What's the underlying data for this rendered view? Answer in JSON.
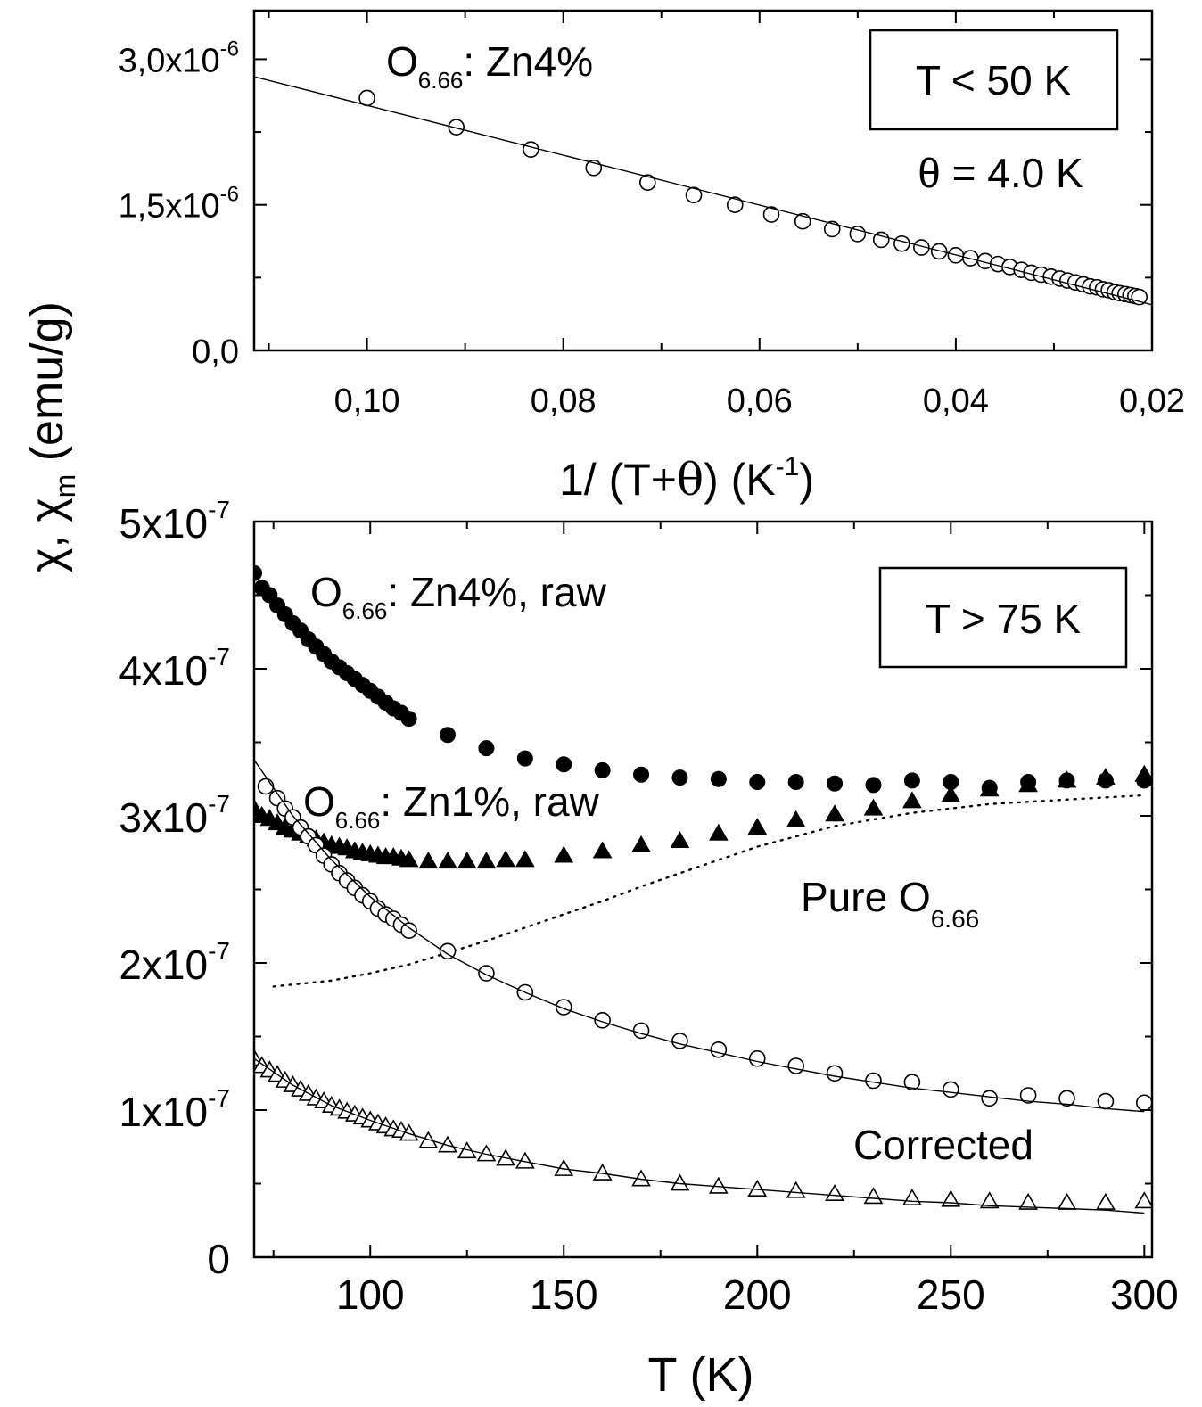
{
  "figure": {
    "shared_ylabel": {
      "main": "χ, χ",
      "sub": "m",
      "units": "(emu/g)"
    }
  },
  "chart_data": [
    {
      "type": "scatter",
      "x_reversed": true,
      "xlim": [
        0.1115,
        0.02
      ],
      "ylim": [
        0.0,
        3.5e-06
      ],
      "xlabel": {
        "pre": "1/ (T+",
        "theta": "θ",
        "post": ") (K",
        "sup": "-1",
        "close": ")"
      },
      "x_ticks": [
        {
          "value": 0.1,
          "label": "0,10"
        },
        {
          "value": 0.08,
          "label": "0,08"
        },
        {
          "value": 0.06,
          "label": "0,06"
        },
        {
          "value": 0.04,
          "label": "0,04"
        },
        {
          "value": 0.02,
          "label": "0,02"
        }
      ],
      "y_ticks": [
        {
          "value": 0.0,
          "mant": "0,0",
          "exp": ""
        },
        {
          "value": 1.5e-06,
          "mant": "1,5x10",
          "exp": "-6"
        },
        {
          "value": 3e-06,
          "mant": "3,0x10",
          "exp": "-6"
        }
      ],
      "annotations": {
        "series_label": {
          "pre": "O",
          "sub": "6.66",
          "post": ": Zn4%"
        },
        "box_label": "T < 50 K",
        "theta_label": "θ = 4.0 K"
      },
      "series": [
        {
          "name": "O6.66: Zn4%",
          "marker": "open-circle",
          "x": [
            0.1,
            0.0909,
            0.0833,
            0.0769,
            0.0714,
            0.0667,
            0.0625,
            0.0588,
            0.0556,
            0.0526,
            0.05,
            0.0476,
            0.0455,
            0.0435,
            0.0417,
            0.04,
            0.0385,
            0.037,
            0.0357,
            0.0345,
            0.0333,
            0.0323,
            0.0313,
            0.0303,
            0.0294,
            0.0286,
            0.0278,
            0.027,
            0.0263,
            0.0256,
            0.025,
            0.0244,
            0.0238,
            0.0233,
            0.0227,
            0.0222,
            0.0217,
            0.0213
          ],
          "y": [
            2.6e-06,
            2.3e-06,
            2.07e-06,
            1.88e-06,
            1.73e-06,
            1.6e-06,
            1.5e-06,
            1.4e-06,
            1.33e-06,
            1.25e-06,
            1.2e-06,
            1.14e-06,
            1.1e-06,
            1.06e-06,
            1.02e-06,
            9.8e-07,
            9.5e-07,
            9.2e-07,
            8.9e-07,
            8.6e-07,
            8.3e-07,
            8e-07,
            7.8e-07,
            7.6e-07,
            7.4e-07,
            7.2e-07,
            7e-07,
            6.8e-07,
            6.6e-07,
            6.5e-07,
            6.3e-07,
            6.2e-07,
            6e-07,
            5.9e-07,
            5.8e-07,
            5.7e-07,
            5.6e-07,
            5.5e-07
          ]
        },
        {
          "name": "fit",
          "style": "solid-line",
          "x": [
            0.1115,
            0.02
          ],
          "y": [
            2.82e-06,
            4.7e-07
          ]
        }
      ]
    },
    {
      "type": "scatter",
      "xlim": [
        70,
        302
      ],
      "ylim": [
        0,
        5e-07
      ],
      "xlabel": "T (K)",
      "x_ticks": [
        {
          "value": 100,
          "label": "100"
        },
        {
          "value": 150,
          "label": "150"
        },
        {
          "value": 200,
          "label": "200"
        },
        {
          "value": 250,
          "label": "250"
        },
        {
          "value": 300,
          "label": "300"
        }
      ],
      "y_ticks": [
        {
          "value": 0,
          "mant": "0",
          "exp": ""
        },
        {
          "value": 1e-07,
          "mant": "1x10",
          "exp": "-7"
        },
        {
          "value": 2e-07,
          "mant": "2x10",
          "exp": "-7"
        },
        {
          "value": 3e-07,
          "mant": "3x10",
          "exp": "-7"
        },
        {
          "value": 4e-07,
          "mant": "4x10",
          "exp": "-7"
        },
        {
          "value": 5e-07,
          "mant": "5x10",
          "exp": "-7"
        }
      ],
      "annotations": {
        "zn4_raw_label": {
          "pre": "O",
          "sub": "6.66",
          "post": ": Zn4%, raw"
        },
        "zn1_raw_label": {
          "pre": "O",
          "sub": "6.66",
          "post": ": Zn1%, raw"
        },
        "pure_label": {
          "pre": "Pure O",
          "sub": "6.66"
        },
        "corrected_label": "Corrected",
        "box_label": "T > 75 K"
      },
      "series": [
        {
          "name": "O6.66: Zn4%, raw",
          "marker": "filled-circle",
          "x": [
            70,
            72,
            74,
            76,
            78,
            80,
            82,
            84,
            86,
            88,
            90,
            92,
            94,
            96,
            98,
            100,
            102,
            104,
            106,
            108,
            110,
            120,
            130,
            140,
            150,
            160,
            170,
            180,
            190,
            200,
            210,
            220,
            230,
            240,
            250,
            260,
            270,
            280,
            290,
            300
          ],
          "y": [
            4.65e-07,
            4.55e-07,
            4.5e-07,
            4.43e-07,
            4.37e-07,
            4.31e-07,
            4.26e-07,
            4.2e-07,
            4.15e-07,
            4.1e-07,
            4.05e-07,
            4.01e-07,
            3.97e-07,
            3.93e-07,
            3.89e-07,
            3.85e-07,
            3.81e-07,
            3.77e-07,
            3.73e-07,
            3.7e-07,
            3.66e-07,
            3.55e-07,
            3.46e-07,
            3.39e-07,
            3.35e-07,
            3.31e-07,
            3.28e-07,
            3.26e-07,
            3.25e-07,
            3.23e-07,
            3.23e-07,
            3.22e-07,
            3.21e-07,
            3.24e-07,
            3.23e-07,
            3.19e-07,
            3.23e-07,
            3.24e-07,
            3.24e-07,
            3.24e-07
          ]
        },
        {
          "name": "O6.66: Zn1%, raw",
          "marker": "filled-triangle",
          "x": [
            70,
            72,
            74,
            76,
            78,
            80,
            82,
            84,
            86,
            88,
            90,
            92,
            94,
            96,
            98,
            100,
            102,
            104,
            106,
            108,
            110,
            115,
            120,
            125,
            130,
            135,
            140,
            150,
            160,
            170,
            180,
            190,
            200,
            210,
            220,
            230,
            240,
            250,
            260,
            270,
            280,
            290,
            300
          ],
          "y": [
            3.05e-07,
            3e-07,
            2.98e-07,
            2.95e-07,
            2.92e-07,
            2.9e-07,
            2.88e-07,
            2.86e-07,
            2.84e-07,
            2.82e-07,
            2.8e-07,
            2.79e-07,
            2.78e-07,
            2.76e-07,
            2.75e-07,
            2.74e-07,
            2.73e-07,
            2.72e-07,
            2.72e-07,
            2.71e-07,
            2.7e-07,
            2.69e-07,
            2.69e-07,
            2.69e-07,
            2.69e-07,
            2.7e-07,
            2.7e-07,
            2.73e-07,
            2.76e-07,
            2.8e-07,
            2.83e-07,
            2.88e-07,
            2.92e-07,
            2.97e-07,
            3.01e-07,
            3.05e-07,
            3.1e-07,
            3.14e-07,
            3.18e-07,
            3.21e-07,
            3.24e-07,
            3.26e-07,
            3.28e-07
          ]
        },
        {
          "name": "Pure O6.66",
          "style": "dotted-line",
          "x": [
            75,
            90,
            100,
            110,
            120,
            130,
            140,
            150,
            160,
            170,
            180,
            190,
            200,
            220,
            240,
            260,
            280,
            300
          ],
          "y": [
            1.84e-07,
            1.88e-07,
            1.93e-07,
            1.99e-07,
            2.07e-07,
            2.15e-07,
            2.24e-07,
            2.33e-07,
            2.42e-07,
            2.52e-07,
            2.61e-07,
            2.7e-07,
            2.79e-07,
            2.93e-07,
            3.02e-07,
            3.08e-07,
            3.11e-07,
            3.14e-07
          ]
        },
        {
          "name": "O6.66: Zn1%, corrected",
          "marker": "open-circle",
          "x": [
            73,
            76,
            78,
            80,
            82,
            84,
            86,
            88,
            90,
            92,
            94,
            96,
            98,
            100,
            102,
            104,
            106,
            108,
            110,
            120,
            130,
            140,
            150,
            160,
            170,
            180,
            190,
            200,
            210,
            220,
            230,
            240,
            250,
            260,
            270,
            280,
            290,
            300
          ],
          "y": [
            3.2e-07,
            3.12e-07,
            3.05e-07,
            2.99e-07,
            2.92e-07,
            2.86e-07,
            2.8e-07,
            2.73e-07,
            2.67e-07,
            2.61e-07,
            2.56e-07,
            2.51e-07,
            2.46e-07,
            2.42e-07,
            2.37e-07,
            2.33e-07,
            2.3e-07,
            2.26e-07,
            2.22e-07,
            2.08e-07,
            1.93e-07,
            1.8e-07,
            1.7e-07,
            1.61e-07,
            1.54e-07,
            1.47e-07,
            1.41e-07,
            1.35e-07,
            1.3e-07,
            1.25e-07,
            1.2e-07,
            1.19e-07,
            1.14e-07,
            1.08e-07,
            1.1e-07,
            1.08e-07,
            1.06e-07,
            1.05e-07
          ]
        },
        {
          "name": "fit corrected circles",
          "style": "solid-line",
          "x": [
            70,
            80,
            90,
            100,
            110,
            120,
            130,
            140,
            150,
            160,
            170,
            180,
            190,
            200,
            210,
            220,
            230,
            240,
            250,
            260,
            270,
            280,
            290,
            300
          ],
          "y": [
            3.38e-07,
            3e-07,
            2.7e-07,
            2.45e-07,
            2.24e-07,
            2.06e-07,
            1.92e-07,
            1.8e-07,
            1.69e-07,
            1.6e-07,
            1.52e-07,
            1.45e-07,
            1.39e-07,
            1.33e-07,
            1.28e-07,
            1.23e-07,
            1.19e-07,
            1.15e-07,
            1.12e-07,
            1.09e-07,
            1.06e-07,
            1.04e-07,
            1.01e-07,
            9.9e-08
          ]
        },
        {
          "name": "O6.66: Zn4%, corrected",
          "marker": "open-triangle",
          "x": [
            70,
            72,
            74,
            76,
            78,
            80,
            82,
            84,
            86,
            88,
            90,
            92,
            94,
            96,
            98,
            100,
            102,
            104,
            106,
            108,
            110,
            115,
            120,
            125,
            130,
            135,
            140,
            150,
            160,
            170,
            180,
            190,
            200,
            210,
            220,
            230,
            240,
            250,
            260,
            270,
            280,
            290,
            300
          ],
          "y": [
            1.35e-07,
            1.3e-07,
            1.27e-07,
            1.24e-07,
            1.2e-07,
            1.17e-07,
            1.14e-07,
            1.11e-07,
            1.08e-07,
            1.06e-07,
            1.03e-07,
            1.01e-07,
            9.9e-08,
            9.7e-08,
            9.5e-08,
            9.3e-08,
            9.1e-08,
            8.9e-08,
            8.7e-08,
            8.6e-08,
            8.4e-08,
            7.9e-08,
            7.6e-08,
            7.2e-08,
            7e-08,
            6.7e-08,
            6.5e-08,
            6e-08,
            5.7e-08,
            5.3e-08,
            5e-08,
            4.8e-08,
            4.6e-08,
            4.5e-08,
            4.3e-08,
            4.1e-08,
            4e-08,
            3.9e-08,
            3.8e-08,
            3.7e-08,
            3.7e-08,
            3.7e-08,
            3.8e-08
          ]
        },
        {
          "name": "fit corrected triangles",
          "style": "solid-line",
          "x": [
            70,
            80,
            90,
            100,
            110,
            120,
            130,
            140,
            150,
            160,
            170,
            180,
            190,
            200,
            210,
            220,
            230,
            240,
            250,
            260,
            270,
            280,
            290,
            300
          ],
          "y": [
            1.35e-07,
            1.17e-07,
            1.03e-07,
            9.3e-08,
            8.4e-08,
            7.6e-08,
            7e-08,
            6.5e-08,
            6e-08,
            5.7e-08,
            5.3e-08,
            5e-08,
            4.8e-08,
            4.6e-08,
            4.4e-08,
            4.2e-08,
            4e-08,
            3.8e-08,
            3.7e-08,
            3.5e-08,
            3.4e-08,
            3.3e-08,
            3.2e-08,
            3e-08
          ]
        }
      ]
    }
  ]
}
